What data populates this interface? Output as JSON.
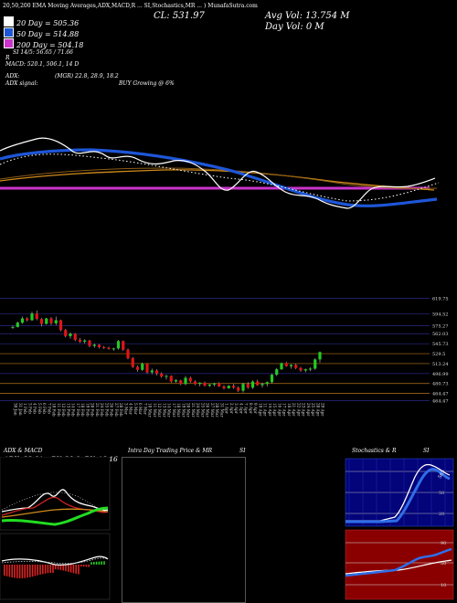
{
  "header": {
    "topline": "20,50,200 EMA Moving Averages,ADX,MACD,R ... SI,Stochastics,MR ... ) MunafaSutra.com",
    "cl_label": "CL: 531.97",
    "avg_vol": "Avg Vol: 13.754   M",
    "day_vol": "Day Vol: 0   M",
    "ema20": "20   Day = 505.36",
    "ema50": "50   Day = 514.88",
    "ema200": "200   Day = 504.18",
    "si": "SI 14/5: 56.65 / 71.66",
    "r": "R",
    "macd": "MACD: 520.1,  506.1,  14   D",
    "adx": "ADX:",
    "mgr": "(MGR) 22.8,  28.9,  18.2",
    "adx_signal": "ADX   signal:",
    "buy": "BUY Growing @ 6%"
  },
  "colors": {
    "ema20": "#ffffff",
    "ema50": "#1e56d8",
    "ema200": "#cc33cc",
    "up": "#22cc22",
    "down": "#e01515",
    "gold": "#c98a1a"
  },
  "price_axis": [
    "619.75",
    "594.52",
    "575.27",
    "562.03",
    "545.73",
    "529.5",
    "513.24",
    "496.99",
    "480.73",
    "464.47",
    "464.47"
  ],
  "dates": [
    "30 Jan",
    "31 Jan",
    "1 Feb",
    "3 Feb",
    "4 Feb",
    "5 Feb",
    "6 Feb",
    "7 Feb",
    "10 Feb",
    "11 Feb",
    "12 Feb",
    "13 Feb",
    "14 Feb",
    "17 Feb",
    "18 Feb",
    "19 Feb",
    "20 Feb",
    "21 Feb",
    "24 Feb",
    "25 Feb",
    "26 Feb",
    "27 Feb",
    "28 Feb",
    "3 Mar",
    "4 Mar",
    "5 Mar",
    "6 Mar",
    "7 Mar",
    "10 Mar",
    "11 Mar",
    "12 Mar",
    "13 Mar",
    "14 Mar",
    "17 Mar",
    "18 Mar",
    "19 Mar",
    "20 Mar",
    "21 Mar",
    "24 Mar",
    "25 Mar",
    "26 Mar",
    "27 Mar",
    "28 Mar",
    "31 Mar",
    "1 Apr",
    "2 Apr",
    "3 Apr",
    "4 Apr",
    "7 Apr",
    "8 Apr",
    "9 Apr",
    "10 Apr",
    "11 Apr",
    "14 Apr",
    "15 Apr",
    "16 Apr",
    "17 Apr",
    "18 Apr",
    "21 Apr",
    "22 Apr",
    "23 Apr",
    "24 Apr",
    "25 Apr",
    "28 Apr",
    "29 Apr"
  ],
  "panels": {
    "adx": {
      "title": "ADX  & MACD",
      "values": "ADX: 22.81  +DY: 28.9  -DY: 18.16"
    },
    "intraday": {
      "title": "Intra Day Trading Price  & MR",
      "si": "SI"
    },
    "stoch": {
      "title": "Stochastics & R",
      "si": "SI",
      "levels": [
        "80",
        "50",
        "20"
      ],
      "si_levels": [
        "90",
        "50",
        "10"
      ],
      "tag": "56"
    }
  },
  "chart_data": {
    "type": "candlestick",
    "ylim": [
      455,
      628
    ],
    "dates": [
      "30 Jan",
      "31 Jan",
      "1 Feb",
      "3 Feb",
      "4 Feb",
      "5 Feb",
      "6 Feb",
      "7 Feb",
      "10 Feb",
      "11 Feb",
      "12 Feb",
      "13 Feb",
      "14 Feb",
      "17 Feb",
      "18 Feb",
      "19 Feb",
      "20 Feb",
      "21 Feb",
      "24 Feb",
      "25 Feb",
      "26 Feb",
      "27 Feb",
      "28 Feb",
      "3 Mar",
      "4 Mar",
      "5 Mar",
      "6 Mar",
      "7 Mar",
      "10 Mar",
      "11 Mar",
      "12 Mar",
      "13 Mar",
      "14 Mar",
      "17 Mar",
      "18 Mar",
      "19 Mar",
      "20 Mar",
      "21 Mar",
      "24 Mar",
      "25 Mar",
      "26 Mar",
      "27 Mar",
      "28 Mar",
      "31 Mar",
      "1 Apr",
      "2 Apr",
      "3 Apr",
      "4 Apr",
      "7 Apr",
      "8 Apr",
      "9 Apr",
      "10 Apr",
      "11 Apr",
      "14 Apr",
      "15 Apr",
      "16 Apr",
      "17 Apr",
      "18 Apr",
      "21 Apr",
      "22 Apr",
      "23 Apr",
      "24 Apr",
      "25 Apr",
      "28 Apr",
      "29 Apr"
    ],
    "candles": [
      [
        572,
        575,
        570,
        573
      ],
      [
        573,
        582,
        572,
        580
      ],
      [
        580,
        590,
        578,
        587
      ],
      [
        587,
        589,
        582,
        584
      ],
      [
        584,
        598,
        583,
        595
      ],
      [
        595,
        600,
        584,
        586
      ],
      [
        586,
        588,
        574,
        578
      ],
      [
        578,
        588,
        577,
        587
      ],
      [
        587,
        589,
        576,
        579
      ],
      [
        579,
        590,
        576,
        584
      ],
      [
        584,
        585,
        566,
        568
      ],
      [
        568,
        570,
        556,
        558
      ],
      [
        558,
        564,
        554,
        562
      ],
      [
        562,
        563,
        550,
        552
      ],
      [
        552,
        555,
        547,
        549
      ],
      [
        549,
        553,
        546,
        551
      ],
      [
        551,
        552,
        540,
        542
      ],
      [
        542,
        546,
        539,
        544
      ],
      [
        544,
        545,
        538,
        540
      ],
      [
        540,
        542,
        537,
        539
      ],
      [
        539,
        541,
        536,
        537
      ],
      [
        537,
        539,
        534,
        538
      ],
      [
        538,
        552,
        536,
        550
      ],
      [
        550,
        551,
        534,
        536
      ],
      [
        536,
        538,
        520,
        522
      ],
      [
        522,
        524,
        506,
        508
      ],
      [
        508,
        510,
        500,
        503
      ],
      [
        503,
        515,
        501,
        513
      ],
      [
        513,
        514,
        497,
        499
      ],
      [
        499,
        505,
        496,
        502
      ],
      [
        502,
        504,
        494,
        497
      ],
      [
        497,
        499,
        490,
        492
      ],
      [
        492,
        495,
        487,
        493
      ],
      [
        493,
        494,
        482,
        484
      ],
      [
        484,
        488,
        482,
        486
      ],
      [
        486,
        487,
        478,
        480
      ],
      [
        480,
        493,
        478,
        490
      ],
      [
        490,
        492,
        482,
        484
      ],
      [
        484,
        486,
        478,
        480
      ],
      [
        480,
        483,
        476,
        482
      ],
      [
        482,
        484,
        476,
        477
      ],
      [
        477,
        480,
        475,
        479
      ],
      [
        479,
        482,
        476,
        481
      ],
      [
        481,
        483,
        475,
        476
      ],
      [
        476,
        478,
        471,
        473
      ],
      [
        473,
        478,
        472,
        477
      ],
      [
        477,
        480,
        472,
        474
      ],
      [
        474,
        476,
        467,
        469
      ],
      [
        469,
        482,
        466,
        480
      ],
      [
        480,
        483,
        472,
        474
      ],
      [
        474,
        486,
        472,
        484
      ],
      [
        484,
        487,
        477,
        478
      ],
      [
        478,
        482,
        474,
        480
      ],
      [
        480,
        484,
        476,
        483
      ],
      [
        483,
        497,
        481,
        495
      ],
      [
        495,
        506,
        493,
        504
      ],
      [
        504,
        515,
        503,
        514
      ],
      [
        514,
        516,
        508,
        509
      ],
      [
        509,
        512,
        505,
        511
      ],
      [
        511,
        513,
        504,
        506
      ],
      [
        506,
        508,
        500,
        502
      ],
      [
        502,
        505,
        499,
        504
      ],
      [
        504,
        507,
        501,
        505
      ],
      [
        505,
        522,
        503,
        520
      ],
      [
        520,
        533,
        515,
        532
      ]
    ],
    "series": [
      {
        "name": "20 Day",
        "value": 505.36
      },
      {
        "name": "50 Day",
        "value": 514.88
      },
      {
        "name": "200 Day",
        "value": 504.18
      }
    ]
  }
}
